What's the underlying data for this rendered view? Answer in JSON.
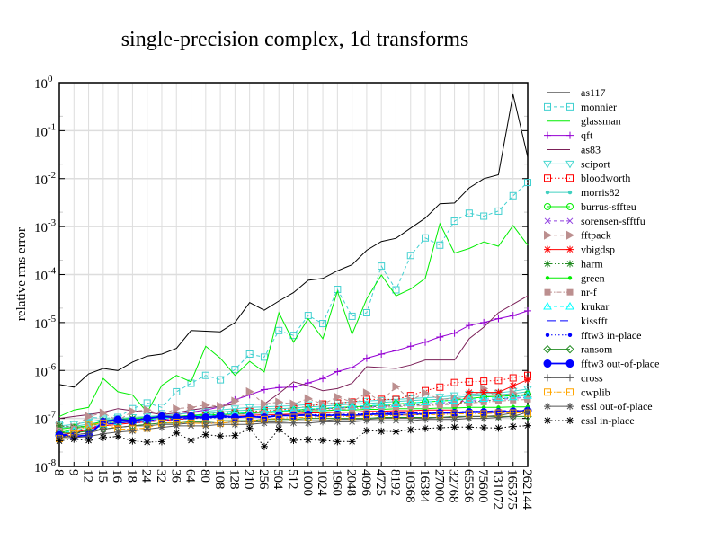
{
  "chart_data": {
    "type": "line",
    "title": "single-precision complex, 1d transforms",
    "xlabel": "",
    "ylabel": "relative rms error",
    "yscale": "log",
    "ylim": [
      1e-08,
      1
    ],
    "grid": true,
    "legend_placement": "right",
    "y_tick_base": "10",
    "y_tick_exponents": [
      "0",
      "-1",
      "-2",
      "-3",
      "-4",
      "-5",
      "-6",
      "-7",
      "-8"
    ],
    "categories": [
      "8",
      "9",
      "12",
      "15",
      "16",
      "18",
      "24",
      "32",
      "36",
      "64",
      "80",
      "108",
      "128",
      "210",
      "256",
      "504",
      "512",
      "1000",
      "1024",
      "1960",
      "2048",
      "4096",
      "4725",
      "8192",
      "10368",
      "16384",
      "27000",
      "32768",
      "65536",
      "75600",
      "131072",
      "165375",
      "262144"
    ],
    "series": [
      {
        "name": "as117",
        "color": "#000000",
        "dash": "solid",
        "marker": "none",
        "values": [
          5.1e-07,
          4.5e-07,
          8.5e-07,
          1.1e-06,
          1e-06,
          1.5e-06,
          2e-06,
          2.2e-06,
          2.9e-06,
          6.8e-06,
          6.6e-06,
          6.4e-06,
          1e-05,
          2.6e-05,
          1.8e-05,
          2.8e-05,
          4.2e-05,
          7.6e-05,
          8.3e-05,
          0.00012,
          0.00016,
          0.00032,
          0.00049,
          0.00057,
          0.00093,
          0.0015,
          0.003,
          0.0031,
          0.0064,
          0.01,
          0.012,
          0.57,
          0.028
        ]
      },
      {
        "name": "monnier",
        "color": "#40d0d0",
        "dash": "dashed",
        "marker": "square",
        "values": [
          7.4e-08,
          6.5e-08,
          1.07e-07,
          1e-07,
          1.05e-07,
          1.6e-07,
          2.1e-07,
          1.7e-07,
          3.6e-07,
          5.4e-07,
          7.9e-07,
          6.4e-07,
          1.05e-06,
          2.2e-06,
          1.9e-06,
          6.8e-06,
          5.4e-06,
          1.4e-05,
          9.5e-06,
          4.9e-05,
          1.35e-05,
          1.6e-05,
          0.00015,
          4.8e-05,
          0.00025,
          0.00058,
          0.00041,
          0.0013,
          0.0019,
          0.00165,
          0.0021,
          0.0044,
          0.0083
        ]
      },
      {
        "name": "glassman",
        "color": "#00ee00",
        "dash": "solid",
        "marker": "none",
        "values": [
          1.1e-07,
          1.5e-07,
          1.7e-07,
          6.8e-07,
          3.6e-07,
          3.1e-07,
          1.35e-07,
          4.9e-07,
          7.9e-07,
          5.8e-07,
          3.2e-06,
          1.8e-06,
          7.9e-07,
          1.55e-06,
          9.3e-07,
          1.6e-05,
          3.9e-06,
          1.2e-05,
          4.6e-06,
          4.5e-05,
          5.7e-06,
          3.1e-05,
          9.8e-05,
          3.6e-05,
          5e-05,
          8.3e-05,
          0.00115,
          0.00028,
          0.00035,
          0.00048,
          0.00039,
          0.00105,
          0.00041
        ]
      },
      {
        "name": "qft",
        "color": "#9400d3",
        "dash": "solid",
        "marker": "plus",
        "values": [
          4.5e-08,
          5e-08,
          6e-08,
          7.5e-08,
          8e-08,
          9e-08,
          1e-07,
          1.1e-07,
          1.2e-07,
          1.35e-07,
          1.5e-07,
          1.75e-07,
          2.45e-07,
          3.1e-07,
          4e-07,
          4.4e-07,
          4.5e-07,
          5.5e-07,
          6.8e-07,
          9.5e-07,
          1.15e-06,
          1.8e-06,
          2.2e-06,
          2.6e-06,
          3.2e-06,
          3.9e-06,
          5e-06,
          6e-06,
          8.7e-06,
          1e-05,
          1.2e-05,
          1.4e-05,
          1.75e-05
        ]
      },
      {
        "name": "as83",
        "color": "#7b2058",
        "dash": "solid",
        "marker": "none",
        "values": [
          1e-07,
          1.1e-07,
          1.2e-07,
          1.35e-07,
          1.6e-07,
          1.45e-07,
          1.35e-07,
          1.2e-07,
          1.3e-07,
          1.5e-07,
          1.65e-07,
          1.8e-07,
          2e-07,
          2e-07,
          2e-07,
          3.3e-07,
          5.8e-07,
          4.8e-07,
          3.8e-07,
          4.2e-07,
          5.4e-07,
          1.2e-06,
          1.15e-06,
          1.1e-06,
          1.3e-06,
          1.65e-06,
          1.65e-06,
          1.65e-06,
          4.6e-06,
          8e-06,
          1.6e-05,
          2.4e-05,
          3.6e-05
        ]
      },
      {
        "name": "sciport",
        "color": "#48d8d0",
        "dash": "solid",
        "marker": "tri-down",
        "values": [
          7e-08,
          7.5e-08,
          8.5e-08,
          9.5e-08,
          1e-07,
          1.05e-07,
          1.1e-07,
          1.15e-07,
          1.2e-07,
          1.3e-07,
          1.4e-07,
          1.5e-07,
          1.6e-07,
          1.7e-07,
          1.75e-07,
          1.8e-07,
          1.85e-07,
          1.95e-07,
          2e-07,
          2.1e-07,
          2.2e-07,
          2.3e-07,
          2.4e-07,
          2.5e-07,
          2.6e-07,
          2.7e-07,
          2.8e-07,
          3e-07,
          3.2e-07,
          3.3e-07,
          3.4e-07,
          3.7e-07,
          4.1e-07
        ]
      },
      {
        "name": "bloodworth",
        "color": "#ff0000",
        "dash": "dotted",
        "marker": "square",
        "values": [
          5e-08,
          5.5e-08,
          6.5e-08,
          7.5e-08,
          8e-08,
          8.5e-08,
          9e-08,
          9.5e-08,
          1e-07,
          1.1e-07,
          1.15e-07,
          1.2e-07,
          1.3e-07,
          1.4e-07,
          1.45e-07,
          1.5e-07,
          1.6e-07,
          1.8e-07,
          2e-07,
          2.1e-07,
          2.2e-07,
          2.5e-07,
          2.5e-07,
          2.5e-07,
          3e-07,
          3.8e-07,
          4.5e-07,
          5.6e-07,
          5.8e-07,
          6e-07,
          6.2e-07,
          7e-07,
          7.9e-07
        ]
      },
      {
        "name": "morris82",
        "color": "#40d0c0",
        "dash": "solid",
        "marker": "dot",
        "values": [
          6.3e-08,
          6.8e-08,
          7.7e-08,
          8.5e-08,
          9e-08,
          9.5e-08,
          1e-07,
          1.05e-07,
          1.1e-07,
          1.15e-07,
          1.25e-07,
          1.35e-07,
          1.45e-07,
          1.5e-07,
          1.6e-07,
          1.6e-07,
          1.65e-07,
          1.75e-07,
          1.8e-07,
          1.9e-07,
          2e-07,
          2.05e-07,
          2.15e-07,
          2.25e-07,
          2.35e-07,
          2.45e-07,
          2.5e-07,
          2.7e-07,
          2.9e-07,
          3e-07,
          3.1e-07,
          3.3e-07,
          3.6e-07
        ]
      },
      {
        "name": "burrus-sffteu",
        "color": "#00ee00",
        "dash": "solid",
        "marker": "circle",
        "values": [
          6e-08,
          6.5e-08,
          7e-08,
          8e-08,
          8.5e-08,
          9e-08,
          9.5e-08,
          1e-07,
          1.05e-07,
          1.1e-07,
          1.15e-07,
          1.2e-07,
          1.25e-07,
          1.3e-07,
          1.35e-07,
          1.4e-07,
          1.5e-07,
          1.55e-07,
          1.6e-07,
          1.7e-07,
          1.75e-07,
          1.8e-07,
          1.9e-07,
          2e-07,
          2.1e-07,
          2.2e-07,
          2.3e-07,
          2.4e-07,
          2.6e-07,
          2.8e-07,
          2.9e-07,
          3e-07,
          3.2e-07
        ]
      },
      {
        "name": "sorensen-sfftfu",
        "color": "#9040e0",
        "dash": "dashed",
        "marker": "x",
        "values": [
          5e-08,
          5.5e-08,
          6.5e-08,
          7.5e-08,
          8e-08,
          8.5e-08,
          9e-08,
          9.5e-08,
          1e-07,
          1.05e-07,
          1.1e-07,
          1.15e-07,
          1.2e-07,
          1.25e-07,
          1.3e-07,
          1.35e-07,
          1.4e-07,
          1.5e-07,
          1.6e-07,
          1.65e-07,
          1.7e-07,
          1.75e-07,
          1.8e-07,
          1.85e-07,
          1.9e-07,
          2e-07,
          2.1e-07,
          2.2e-07,
          2.3e-07,
          2.4e-07,
          2.5e-07,
          2.6e-07,
          2.8e-07
        ]
      },
      {
        "name": "fftpack",
        "color": "#bc8f8f",
        "dash": "dashed",
        "marker": "tri-right",
        "values": [
          7e-08,
          6.5e-08,
          1.1e-07,
          1.3e-07,
          9e-08,
          1.4e-07,
          1.5e-07,
          1.2e-07,
          1.6e-07,
          1.7e-07,
          1.9e-07,
          1.8e-07,
          2.3e-07,
          3.6e-07,
          2e-07,
          2.2e-07,
          2e-07,
          2.6e-07,
          2e-07,
          2.8e-07,
          2.2e-07,
          3.4e-07,
          2.3e-07,
          4.6e-07,
          2.4e-07,
          3.4e-07,
          2.5e-07,
          2.6e-07,
          2.6e-07,
          4.2e-07,
          2.7e-07,
          3.4e-07,
          2.8e-07
        ]
      },
      {
        "name": "vbigdsp",
        "color": "#ff0000",
        "dash": "solid",
        "marker": "asterisk",
        "values": [
          4.5e-08,
          5e-08,
          6e-08,
          7e-08,
          7.5e-08,
          8e-08,
          8.5e-08,
          9e-08,
          9.5e-08,
          1e-07,
          1.05e-07,
          1.1e-07,
          1.1e-07,
          1.15e-07,
          1.2e-07,
          1.2e-07,
          1.25e-07,
          1.3e-07,
          1.3e-07,
          1.35e-07,
          1.35e-07,
          1.4e-07,
          1.4e-07,
          1.45e-07,
          1.45e-07,
          1.5e-07,
          1.5e-07,
          1.5e-07,
          3.5e-07,
          3.5e-07,
          3.5e-07,
          4.8e-07,
          6.4e-07
        ]
      },
      {
        "name": "harm",
        "color": "#228b22",
        "dash": "dotted",
        "marker": "asterisk",
        "values": [
          7e-08,
          6.5e-08,
          7e-08,
          9e-08,
          9.5e-08,
          1e-07,
          1e-07,
          1.05e-07,
          1.1e-07,
          1.15e-07,
          1.2e-07,
          1.25e-07,
          1.3e-07,
          1.35e-07,
          1.4e-07,
          1.45e-07,
          1.5e-07,
          1.55e-07,
          1.6e-07,
          1.65e-07,
          1.7e-07,
          1.75e-07,
          1.8e-07,
          1.85e-07,
          1.9e-07,
          1.95e-07,
          2e-07,
          2.1e-07,
          2.2e-07,
          2.3e-07,
          2.5e-07,
          2.8e-07,
          3.2e-07
        ]
      },
      {
        "name": "green",
        "color": "#00ee00",
        "dash": "solid",
        "marker": "dot",
        "values": [
          5e-08,
          6e-08,
          7e-08,
          9e-08,
          9.5e-08,
          1e-07,
          1.05e-07,
          1.1e-07,
          1.1e-07,
          1.15e-07,
          1.2e-07,
          1.2e-07,
          1.25e-07,
          1.3e-07,
          1.3e-07,
          1.35e-07,
          1.4e-07,
          1.45e-07,
          1.45e-07,
          1.5e-07,
          1.5e-07,
          1.55e-07,
          1.55e-07,
          1.6e-07,
          1.6e-07,
          1.6e-07,
          1.65e-07,
          1.65e-07,
          1.7e-07,
          1.7e-07,
          1.7e-07,
          1.75e-07,
          1.75e-07
        ]
      },
      {
        "name": "nr-f",
        "color": "#bc8f8f",
        "dash": "dashdot",
        "marker": "filled-square",
        "values": [
          5.5e-08,
          6e-08,
          7e-08,
          8e-08,
          8.5e-08,
          9e-08,
          9.5e-08,
          1e-07,
          1.05e-07,
          1.1e-07,
          1.1e-07,
          1.15e-07,
          1.2e-07,
          1.25e-07,
          1.3e-07,
          1.35e-07,
          1.4e-07,
          1.45e-07,
          1.5e-07,
          1.55e-07,
          1.6e-07,
          1.65e-07,
          1.7e-07,
          1.75e-07,
          1.8e-07,
          1.85e-07,
          1.9e-07,
          2e-07,
          2.1e-07,
          2.2e-07,
          2.3e-07,
          2.4e-07,
          2.5e-07
        ]
      },
      {
        "name": "krukar",
        "color": "#00ffff",
        "dash": "dashed",
        "marker": "tri-up",
        "values": [
          5e-08,
          5.5e-08,
          6.5e-08,
          7.5e-08,
          8.5e-08,
          9e-08,
          9.5e-08,
          1e-07,
          1.05e-07,
          1.1e-07,
          1.15e-07,
          1.2e-07,
          1.3e-07,
          1.35e-07,
          1.4e-07,
          1.45e-07,
          1.5e-07,
          1.6e-07,
          1.65e-07,
          1.7e-07,
          1.8e-07,
          1.85e-07,
          1.9e-07,
          2e-07,
          2.1e-07,
          2.2e-07,
          2.3e-07,
          2.4e-07,
          2.5e-07,
          2.6e-07,
          2.7e-07,
          2.8e-07,
          3e-07
        ]
      },
      {
        "name": "kissfft",
        "color": "#0000ff",
        "dash": "longdash",
        "marker": "none",
        "values": [
          4.5e-08,
          4.8e-08,
          5.5e-08,
          7.5e-08,
          8e-08,
          8.5e-08,
          9e-08,
          9.5e-08,
          1e-07,
          1e-07,
          1.05e-07,
          1.05e-07,
          1.1e-07,
          1.1e-07,
          1.1e-07,
          1.15e-07,
          1.15e-07,
          1.15e-07,
          1.2e-07,
          1.2e-07,
          1.2e-07,
          1.25e-07,
          1.25e-07,
          1.3e-07,
          1.3e-07,
          1.3e-07,
          1.35e-07,
          1.35e-07,
          1.4e-07,
          1.4e-07,
          1.45e-07,
          1.45e-07,
          1.5e-07
        ]
      },
      {
        "name": "fftw3 in-place",
        "color": "#0000ff",
        "dash": "dotted",
        "marker": "dot",
        "values": [
          4.5e-08,
          4.5e-08,
          5e-08,
          8e-08,
          8.5e-08,
          8e-08,
          8.5e-08,
          9e-08,
          9.5e-08,
          1e-07,
          1e-07,
          1.05e-07,
          1.05e-07,
          1.1e-07,
          1.1e-07,
          1.15e-07,
          1.15e-07,
          1.2e-07,
          1.2e-07,
          1.2e-07,
          1.25e-07,
          1.25e-07,
          1.3e-07,
          1.3e-07,
          1.3e-07,
          1.35e-07,
          1.35e-07,
          1.35e-07,
          1.4e-07,
          1.4e-07,
          1.4e-07,
          1.45e-07,
          1.45e-07
        ]
      },
      {
        "name": "ransom",
        "color": "#228b22",
        "dash": "solid",
        "marker": "diamond",
        "values": [
          5e-08,
          5e-08,
          5.5e-08,
          6e-08,
          6.5e-08,
          7e-08,
          7.5e-08,
          8e-08,
          8e-08,
          8.5e-08,
          8.5e-08,
          9e-08,
          9e-08,
          9e-08,
          9.5e-08,
          9.5e-08,
          9.5e-08,
          1e-07,
          1e-07,
          1e-07,
          1e-07,
          1e-07,
          1.05e-07,
          1.05e-07,
          1.05e-07,
          1.05e-07,
          1.05e-07,
          1.1e-07,
          1.1e-07,
          1.1e-07,
          1.1e-07,
          1.1e-07,
          1.1e-07
        ]
      },
      {
        "name": "fftw3 out-of-place",
        "color": "#0000ff",
        "dash": "solid",
        "marker": "big-dot",
        "values": [
          4.5e-08,
          4.2e-08,
          4.5e-08,
          8.5e-08,
          9.5e-08,
          9e-08,
          1e-07,
          1.1e-07,
          1.05e-07,
          1.1e-07,
          1.05e-07,
          1.15e-07,
          1.05e-07,
          1.1e-07,
          1.05e-07,
          1.15e-07,
          1.15e-07,
          1.2e-07,
          1.1e-07,
          1.2e-07,
          1.15e-07,
          1.2e-07,
          1.25e-07,
          1.2e-07,
          1.2e-07,
          1.25e-07,
          1.3e-07,
          1.3e-07,
          1.35e-07,
          1.35e-07,
          1.35e-07,
          1.4e-07,
          1.45e-07
        ]
      },
      {
        "name": "cross",
        "color": "#555555",
        "dash": "solid",
        "marker": "plus",
        "values": [
          4e-08,
          4.5e-08,
          5e-08,
          6e-08,
          6.5e-08,
          7e-08,
          7e-08,
          7.5e-08,
          7.5e-08,
          8e-08,
          8e-08,
          8e-08,
          8.5e-08,
          8.5e-08,
          8.5e-08,
          8.5e-08,
          9e-08,
          9e-08,
          9e-08,
          9.5e-08,
          9.5e-08,
          9.5e-08,
          1e-07,
          1e-07,
          1e-07,
          1e-07,
          1.05e-07,
          1.05e-07,
          1.1e-07,
          1.1e-07,
          1.15e-07,
          1.3e-07,
          1.45e-07
        ]
      },
      {
        "name": "cwplib",
        "color": "#ffa500",
        "dash": "dashdot",
        "marker": "square",
        "values": [
          3.8e-08,
          4.7e-08,
          7.4e-08,
          8e-08,
          6e-08,
          6e-08,
          6.3e-08,
          8e-08,
          8.3e-08,
          8e-08,
          7.8e-08,
          8e-08,
          8.5e-08,
          9e-08,
          9.5e-08,
          1e-07,
          1.05e-07,
          1.05e-07,
          1.1e-07,
          1.1e-07,
          1.1e-07,
          1.15e-07,
          1.15e-07,
          1.15e-07,
          1.2e-07,
          1.2e-07,
          1.2e-07,
          1.25e-07,
          1.25e-07,
          1.25e-07,
          1.3e-07,
          1.3e-07,
          1.3e-07
        ]
      },
      {
        "name": "essl out-of-place",
        "color": "#555555",
        "dash": "solid",
        "marker": "asterisk",
        "values": [
          4e-08,
          4e-08,
          4.2e-08,
          4.8e-08,
          5.2e-08,
          5.5e-08,
          6e-08,
          6.5e-08,
          7e-08,
          7e-08,
          7e-08,
          7.5e-08,
          7.5e-08,
          7.5e-08,
          8e-08,
          8e-08,
          8e-08,
          8e-08,
          8.5e-08,
          8.5e-08,
          8.5e-08,
          9e-08,
          9e-08,
          9e-08,
          9e-08,
          9.5e-08,
          9.5e-08,
          9.5e-08,
          1e-07,
          1e-07,
          1.05e-07,
          1.1e-07,
          1.35e-07
        ]
      },
      {
        "name": "essl in-place",
        "color": "#000000",
        "dash": "dotted",
        "marker": "asterisk",
        "values": [
          3.4e-08,
          3.7e-08,
          3.5e-08,
          4e-08,
          4.2e-08,
          3.4e-08,
          3.2e-08,
          3.3e-08,
          5e-08,
          3.5e-08,
          4.6e-08,
          4.3e-08,
          4.4e-08,
          6.2e-08,
          2.6e-08,
          6e-08,
          3.5e-08,
          3.6e-08,
          3.5e-08,
          3.3e-08,
          3.3e-08,
          5.6e-08,
          5.4e-08,
          5.3e-08,
          5.8e-08,
          6.2e-08,
          6.4e-08,
          6.6e-08,
          6.6e-08,
          6.4e-08,
          6.3e-08,
          6.8e-08,
          7.1e-08
        ]
      }
    ]
  }
}
